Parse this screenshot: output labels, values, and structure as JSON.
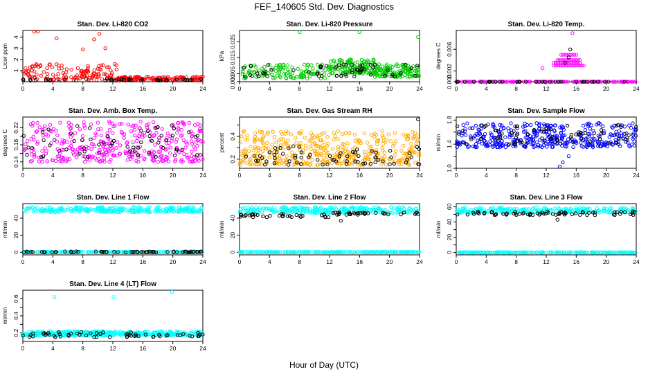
{
  "figure": {
    "title": "FEF_140605  Std. Dev. Diagnostics",
    "xlabel": "Hour of Day (UTC)"
  },
  "colors": {
    "overlay": "#000000",
    "axis": "#000000"
  },
  "chart_data": [
    {
      "id": "co2",
      "type": "scatter",
      "title": "Stan. Dev. Li-820 CO2",
      "ylabel": "Licor ppm",
      "xlim": [
        0,
        24
      ],
      "ylim": [
        0,
        4.6
      ],
      "xticks": [
        0,
        4,
        8,
        12,
        16,
        20,
        24
      ],
      "yticks": [
        1,
        2,
        3,
        4
      ],
      "color": "#ff0000",
      "n_main": 260,
      "n_overlay": 45,
      "main": {
        "segments": [
          [
            0,
            12.5,
            0.15,
            1.6
          ],
          [
            12.5,
            24,
            0.1,
            0.45
          ]
        ],
        "outliers": [
          [
            1.5,
            4.5
          ],
          [
            2,
            4.5
          ],
          [
            4.5,
            3.9
          ],
          [
            9.5,
            3.8
          ],
          [
            10.2,
            4.3
          ],
          [
            11,
            3.0
          ],
          [
            8,
            2.9
          ]
        ]
      },
      "overlay": {
        "segments": [
          [
            0,
            24,
            0.1,
            0.25
          ]
        ],
        "outliers": []
      }
    },
    {
      "id": "pressure",
      "type": "scatter",
      "title": "Stan. Dev. Li-820 Pressure",
      "ylabel": "kPa",
      "xlim": [
        0,
        24
      ],
      "ylim": [
        0,
        0.032
      ],
      "xticks": [
        0,
        4,
        8,
        12,
        16,
        20,
        24
      ],
      "yticks": [
        0.0,
        0.005,
        0.015,
        0.025
      ],
      "ytick_labels": [
        "0.000",
        "0.005",
        "0.015",
        "0.025"
      ],
      "color": "#00cc00",
      "n_main": 380,
      "n_overlay": 60,
      "main": {
        "segments": [
          [
            0,
            12,
            0.002,
            0.011
          ],
          [
            12,
            18,
            0.005,
            0.014
          ],
          [
            18,
            24,
            0.003,
            0.011
          ]
        ],
        "outliers": [
          [
            8,
            0.031
          ],
          [
            16,
            0.031
          ],
          [
            23.8,
            0.028
          ]
        ]
      },
      "overlay": {
        "segments": [
          [
            0,
            24,
            0.003,
            0.011
          ]
        ],
        "outliers": []
      }
    },
    {
      "id": "temp",
      "type": "scatter",
      "title": "Stan. Dev. Li-820 Temp.",
      "ylabel": "degrees C",
      "xlim": [
        0,
        24
      ],
      "ylim": [
        0,
        0.0095
      ],
      "xticks": [
        0,
        4,
        8,
        12,
        16,
        20,
        24
      ],
      "yticks": [
        0.0,
        0.002,
        0.006
      ],
      "ytick_labels": [
        "0.000",
        "0.002",
        "0.006"
      ],
      "color": "#ff00ff",
      "n_main": 120,
      "n_overlay": 40,
      "main": {
        "segments": [
          [
            0,
            24,
            0,
            0
          ]
        ],
        "outliers": [
          [
            15.5,
            0.009
          ],
          [
            11.5,
            0.0025
          ]
        ]
      },
      "bands": [
        [
          13,
          17,
          0.003
        ],
        [
          13.5,
          16.5,
          0.004
        ],
        [
          14,
          16,
          0.005
        ],
        [
          13,
          16.5,
          0.0035
        ]
      ],
      "overlay": {
        "segments": [
          [
            0,
            24,
            0,
            0
          ]
        ],
        "outliers": [
          [
            15.2,
            0.006
          ],
          [
            15,
            0.0045
          ],
          [
            14.5,
            0.0035
          ]
        ]
      }
    },
    {
      "id": "ambbox",
      "type": "scatter",
      "title": "Stan. Dev. Amb. Box Temp.",
      "ylabel": "degrees C",
      "xlim": [
        0,
        24
      ],
      "ylim": [
        0.125,
        0.245
      ],
      "xticks": [
        0,
        4,
        8,
        12,
        16,
        20,
        24
      ],
      "yticks": [
        0.14,
        0.16,
        0.18,
        0.2,
        0.22
      ],
      "ytick_labels": [
        "0.14",
        "",
        "0.18",
        "",
        "0.22"
      ],
      "color": "#ff00ff",
      "n_main": 360,
      "n_overlay": 60,
      "main": {
        "segments": [
          [
            0,
            24,
            0.14,
            0.235
          ]
        ],
        "outliers": []
      },
      "overlay": {
        "segments": [
          [
            0,
            24,
            0.15,
            0.23
          ]
        ],
        "outliers": []
      }
    },
    {
      "id": "rh",
      "type": "scatter",
      "title": "Stan. Dev. Gas Stream RH",
      "ylabel": "percent",
      "xlim": [
        0,
        24
      ],
      "ylim": [
        0.12,
        0.57
      ],
      "xticks": [
        0,
        4,
        8,
        12,
        16,
        20,
        24
      ],
      "yticks": [
        0.2,
        0.3,
        0.4,
        0.5
      ],
      "ytick_labels": [
        "0.2",
        "",
        "0.4",
        ""
      ],
      "color": "#ffaa00",
      "n_main": 420,
      "n_overlay": 70,
      "main": {
        "segments": [
          [
            0,
            24,
            0.15,
            0.45
          ]
        ],
        "outliers": [
          [
            0.5,
            0.44
          ],
          [
            3,
            0.44
          ]
        ]
      },
      "overlay": {
        "segments": [
          [
            0,
            24,
            0.15,
            0.32
          ]
        ],
        "outliers": [
          [
            23.8,
            0.55
          ]
        ]
      }
    },
    {
      "id": "sample",
      "type": "scatter",
      "title": "Stan. Dev. Sample Flow",
      "ylabel": "ml/min",
      "xlim": [
        0,
        24
      ],
      "ylim": [
        1.0,
        1.85
      ],
      "xticks": [
        0,
        4,
        8,
        12,
        16,
        20,
        24
      ],
      "yticks": [
        1.0,
        1.2,
        1.4,
        1.6,
        1.8
      ],
      "ytick_labels": [
        "1.0",
        "",
        "1.4",
        "",
        "1.8"
      ],
      "color": "#0000ff",
      "n_main": 380,
      "n_overlay": 70,
      "main": {
        "segments": [
          [
            0,
            24,
            1.35,
            1.75
          ]
        ],
        "outliers": [
          [
            13.8,
            1.03
          ],
          [
            15,
            1.2
          ],
          [
            14.2,
            1.1
          ]
        ]
      },
      "overlay": {
        "segments": [
          [
            0,
            24,
            1.4,
            1.72
          ]
        ],
        "outliers": []
      }
    },
    {
      "id": "line1",
      "type": "scatter",
      "title": "Stan. Dev. Line 1 Flow",
      "ylabel": "ml/min",
      "xlim": [
        0,
        24
      ],
      "ylim": [
        -3,
        57
      ],
      "xticks": [
        0,
        4,
        8,
        12,
        16,
        20,
        24
      ],
      "yticks": [
        0,
        20,
        40
      ],
      "color": "#00ffff",
      "n_main": 500,
      "n_overlay": 60,
      "main": {
        "segments": [
          [
            0,
            24,
            47,
            53
          ],
          [
            0,
            24,
            0,
            0.5
          ]
        ],
        "outliers": []
      },
      "overlay": {
        "segments": [
          [
            0,
            24,
            0,
            1
          ]
        ],
        "outliers": []
      }
    },
    {
      "id": "line2",
      "type": "scatter",
      "title": "Stan. Dev. Line 2 Flow",
      "ylabel": "ml/min",
      "xlim": [
        0,
        24
      ],
      "ylim": [
        -3,
        57
      ],
      "xticks": [
        0,
        4,
        8,
        12,
        16,
        20,
        24
      ],
      "yticks": [
        0,
        20,
        40
      ],
      "color": "#00ffff",
      "n_main": 500,
      "n_overlay": 70,
      "main": {
        "segments": [
          [
            0,
            24,
            46,
            53
          ],
          [
            0,
            24,
            0,
            0.5
          ]
        ],
        "outliers": []
      },
      "overlay": {
        "segments": [
          [
            0,
            12,
            41,
            45
          ],
          [
            12,
            24,
            44,
            47
          ]
        ],
        "outliers": [
          [
            13.5,
            37
          ]
        ]
      }
    },
    {
      "id": "line3",
      "type": "scatter",
      "title": "Stan. Dev. Line 3 Flow",
      "ylabel": "ml/min",
      "xlim": [
        0,
        24
      ],
      "ylim": [
        -3,
        64
      ],
      "xticks": [
        0,
        4,
        8,
        12,
        16,
        20,
        24
      ],
      "yticks": [
        0,
        10,
        20,
        30,
        40,
        50,
        60
      ],
      "ytick_labels": [
        "0",
        "",
        "20",
        "",
        "40",
        "",
        "60"
      ],
      "color": "#00ffff",
      "n_main": 500,
      "n_overlay": 70,
      "main": {
        "segments": [
          [
            0,
            24,
            52,
            59
          ],
          [
            0,
            24,
            0,
            0.5
          ]
        ],
        "outliers": []
      },
      "overlay": {
        "segments": [
          [
            0,
            24,
            49,
            54
          ]
        ],
        "outliers": [
          [
            13.5,
            43
          ]
        ]
      }
    },
    {
      "id": "line4",
      "type": "scatter",
      "title": "Stan. Dev. Line 4 (LT) Flow",
      "ylabel": "ml/min",
      "xlim": [
        0,
        24
      ],
      "ylim": [
        0.1,
        0.7
      ],
      "xticks": [
        0,
        4,
        8,
        12,
        16,
        20,
        24
      ],
      "yticks": [
        0.2,
        0.3,
        0.4,
        0.5,
        0.6
      ],
      "ytick_labels": [
        "0.2",
        "",
        "0.4",
        "",
        "0.6"
      ],
      "color": "#00ffff",
      "n_main": 420,
      "n_overlay": 60,
      "main": {
        "segments": [
          [
            0,
            24,
            0.17,
            0.22
          ]
        ],
        "outliers": [
          [
            4.2,
            0.62
          ],
          [
            12.1,
            0.62
          ],
          [
            19.9,
            0.68
          ]
        ]
      },
      "overlay": {
        "segments": [
          [
            0,
            24,
            0.15,
            0.21
          ]
        ],
        "outliers": []
      }
    }
  ]
}
